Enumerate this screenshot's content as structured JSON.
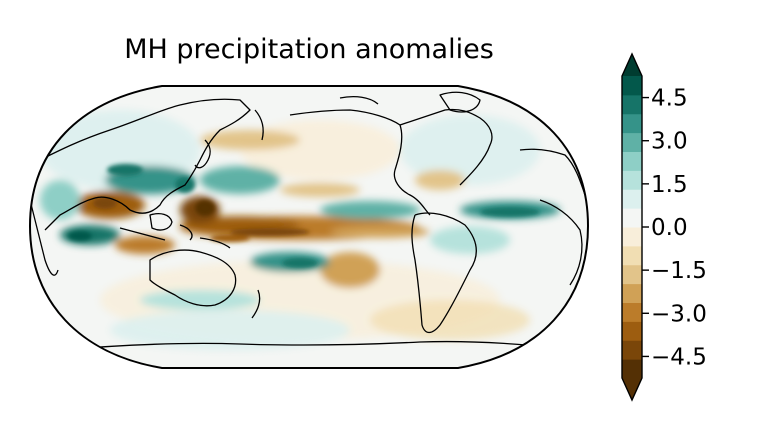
{
  "figure": {
    "title": "MH precipitation anomalies"
  },
  "colorbar": {
    "ticks": [
      "4.5",
      "3.0",
      "1.5",
      "0.0",
      "−1.5",
      "−3.0",
      "−4.5"
    ],
    "range": [
      -5.25,
      5.25
    ],
    "extend": "both",
    "colors": [
      "#543005",
      "#7a4609",
      "#9d5d10",
      "#bb7c2a",
      "#d0a156",
      "#e2c48a",
      "#f1deb3",
      "#f8eeda",
      "#f4f6f4",
      "#dcf0ee",
      "#b6e2dc",
      "#8ecfc6",
      "#5fb1a6",
      "#359389",
      "#167468",
      "#03584b"
    ],
    "under_color": "#543005",
    "over_color": "#003c30"
  },
  "map": {
    "projection": "Robinson",
    "central_longitude": 180,
    "features": [
      "coastlines"
    ]
  }
}
